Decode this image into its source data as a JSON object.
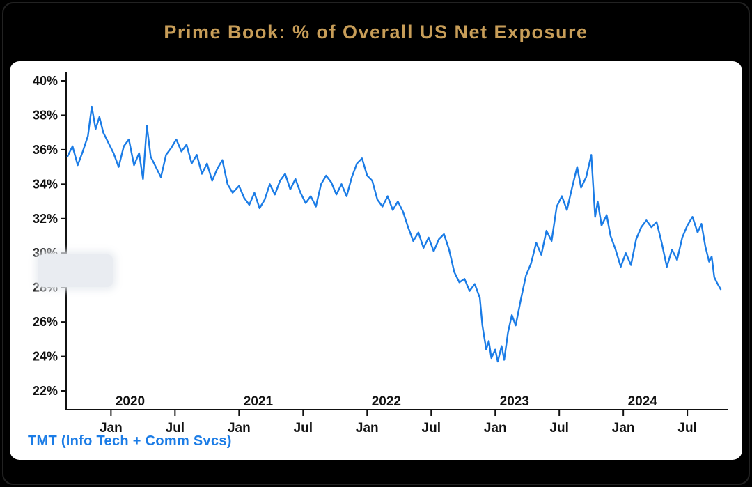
{
  "chart_data": {
    "type": "line",
    "title": "Prime Book: % of Overall US Net Exposure",
    "legend": "TMT (Info Tech + Comm Svcs)",
    "legend_position": "bottom-left",
    "title_color": "#c79d58",
    "line_color": "#1b7ce6",
    "axis_color": "#111111",
    "panel_background": "#ffffff",
    "page_background": "#000000",
    "grid": false,
    "xlabel": "",
    "ylabel": "",
    "ylim": [
      22,
      40
    ],
    "xlim": [
      2019.65,
      2024.82
    ],
    "y_ticks": [
      {
        "v": 22,
        "label": "22%"
      },
      {
        "v": 24,
        "label": "24%"
      },
      {
        "v": 26,
        "label": "26%"
      },
      {
        "v": 28,
        "label": "28%"
      },
      {
        "v": 30,
        "label": "30%"
      },
      {
        "v": 32,
        "label": "32%"
      },
      {
        "v": 34,
        "label": "34%"
      },
      {
        "v": 36,
        "label": "36%"
      },
      {
        "v": 38,
        "label": "38%"
      },
      {
        "v": 40,
        "label": "40%"
      }
    ],
    "x_ticks": [
      {
        "t": 2020.0,
        "label": "Jan"
      },
      {
        "t": 2020.5,
        "label": "Jul"
      },
      {
        "t": 2021.0,
        "label": "Jan"
      },
      {
        "t": 2021.5,
        "label": "Jul"
      },
      {
        "t": 2022.0,
        "label": "Jan"
      },
      {
        "t": 2022.5,
        "label": "Jul"
      },
      {
        "t": 2023.0,
        "label": "Jan"
      },
      {
        "t": 2023.5,
        "label": "Jul"
      },
      {
        "t": 2024.0,
        "label": "Jan"
      },
      {
        "t": 2024.5,
        "label": "Jul"
      }
    ],
    "year_labels": [
      {
        "t": 2020.15,
        "label": "2020"
      },
      {
        "t": 2021.15,
        "label": "2021"
      },
      {
        "t": 2022.15,
        "label": "2022"
      },
      {
        "t": 2023.15,
        "label": "2023"
      },
      {
        "t": 2024.15,
        "label": "2024"
      }
    ],
    "series": [
      {
        "name": "TMT (Info Tech + Comm Svcs)",
        "points": [
          [
            2019.66,
            35.6
          ],
          [
            2019.7,
            36.2
          ],
          [
            2019.74,
            35.1
          ],
          [
            2019.78,
            35.9
          ],
          [
            2019.82,
            36.8
          ],
          [
            2019.85,
            38.5
          ],
          [
            2019.88,
            37.2
          ],
          [
            2019.91,
            37.9
          ],
          [
            2019.94,
            37.0
          ],
          [
            2019.98,
            36.4
          ],
          [
            2020.02,
            35.8
          ],
          [
            2020.06,
            35.0
          ],
          [
            2020.1,
            36.2
          ],
          [
            2020.14,
            36.6
          ],
          [
            2020.18,
            35.1
          ],
          [
            2020.22,
            35.8
          ],
          [
            2020.25,
            34.3
          ],
          [
            2020.28,
            37.4
          ],
          [
            2020.31,
            35.6
          ],
          [
            2020.35,
            35.0
          ],
          [
            2020.39,
            34.4
          ],
          [
            2020.43,
            35.7
          ],
          [
            2020.47,
            36.1
          ],
          [
            2020.51,
            36.6
          ],
          [
            2020.55,
            35.9
          ],
          [
            2020.59,
            36.3
          ],
          [
            2020.63,
            35.2
          ],
          [
            2020.67,
            35.7
          ],
          [
            2020.71,
            34.6
          ],
          [
            2020.75,
            35.2
          ],
          [
            2020.79,
            34.2
          ],
          [
            2020.83,
            34.9
          ],
          [
            2020.87,
            35.4
          ],
          [
            2020.91,
            34.0
          ],
          [
            2020.95,
            33.5
          ],
          [
            2021.0,
            33.9
          ],
          [
            2021.04,
            33.2
          ],
          [
            2021.08,
            32.8
          ],
          [
            2021.12,
            33.5
          ],
          [
            2021.16,
            32.6
          ],
          [
            2021.2,
            33.1
          ],
          [
            2021.24,
            34.0
          ],
          [
            2021.28,
            33.4
          ],
          [
            2021.32,
            34.2
          ],
          [
            2021.36,
            34.6
          ],
          [
            2021.4,
            33.7
          ],
          [
            2021.44,
            34.3
          ],
          [
            2021.48,
            33.5
          ],
          [
            2021.52,
            32.9
          ],
          [
            2021.56,
            33.3
          ],
          [
            2021.6,
            32.7
          ],
          [
            2021.64,
            34.0
          ],
          [
            2021.68,
            34.5
          ],
          [
            2021.72,
            34.1
          ],
          [
            2021.76,
            33.4
          ],
          [
            2021.8,
            34.0
          ],
          [
            2021.84,
            33.3
          ],
          [
            2021.88,
            34.4
          ],
          [
            2021.92,
            35.2
          ],
          [
            2021.96,
            35.5
          ],
          [
            2022.0,
            34.5
          ],
          [
            2022.04,
            34.2
          ],
          [
            2022.08,
            33.1
          ],
          [
            2022.12,
            32.7
          ],
          [
            2022.16,
            33.3
          ],
          [
            2022.2,
            32.5
          ],
          [
            2022.24,
            33.0
          ],
          [
            2022.28,
            32.4
          ],
          [
            2022.32,
            31.5
          ],
          [
            2022.36,
            30.7
          ],
          [
            2022.4,
            31.2
          ],
          [
            2022.44,
            30.3
          ],
          [
            2022.48,
            30.9
          ],
          [
            2022.52,
            30.1
          ],
          [
            2022.56,
            30.8
          ],
          [
            2022.6,
            31.1
          ],
          [
            2022.64,
            30.2
          ],
          [
            2022.68,
            28.9
          ],
          [
            2022.72,
            28.3
          ],
          [
            2022.76,
            28.5
          ],
          [
            2022.8,
            27.8
          ],
          [
            2022.84,
            28.2
          ],
          [
            2022.88,
            27.4
          ],
          [
            2022.9,
            25.8
          ],
          [
            2022.93,
            24.4
          ],
          [
            2022.95,
            24.9
          ],
          [
            2022.97,
            23.9
          ],
          [
            2023.0,
            24.4
          ],
          [
            2023.02,
            23.7
          ],
          [
            2023.05,
            24.6
          ],
          [
            2023.07,
            23.8
          ],
          [
            2023.1,
            25.4
          ],
          [
            2023.13,
            26.4
          ],
          [
            2023.16,
            25.8
          ],
          [
            2023.2,
            27.3
          ],
          [
            2023.24,
            28.7
          ],
          [
            2023.28,
            29.4
          ],
          [
            2023.32,
            30.6
          ],
          [
            2023.36,
            29.9
          ],
          [
            2023.4,
            31.3
          ],
          [
            2023.44,
            30.7
          ],
          [
            2023.48,
            32.7
          ],
          [
            2023.52,
            33.3
          ],
          [
            2023.56,
            32.5
          ],
          [
            2023.6,
            33.8
          ],
          [
            2023.64,
            35.0
          ],
          [
            2023.67,
            33.8
          ],
          [
            2023.71,
            34.4
          ],
          [
            2023.75,
            35.7
          ],
          [
            2023.78,
            32.1
          ],
          [
            2023.8,
            33.0
          ],
          [
            2023.83,
            31.6
          ],
          [
            2023.87,
            32.2
          ],
          [
            2023.9,
            31.0
          ],
          [
            2023.94,
            30.2
          ],
          [
            2023.98,
            29.2
          ],
          [
            2024.02,
            30.0
          ],
          [
            2024.06,
            29.3
          ],
          [
            2024.1,
            30.8
          ],
          [
            2024.14,
            31.5
          ],
          [
            2024.18,
            31.9
          ],
          [
            2024.22,
            31.5
          ],
          [
            2024.26,
            31.8
          ],
          [
            2024.3,
            30.6
          ],
          [
            2024.34,
            29.2
          ],
          [
            2024.38,
            30.2
          ],
          [
            2024.42,
            29.6
          ],
          [
            2024.46,
            30.9
          ],
          [
            2024.5,
            31.6
          ],
          [
            2024.54,
            32.1
          ],
          [
            2024.58,
            31.2
          ],
          [
            2024.61,
            31.7
          ],
          [
            2024.64,
            30.4
          ],
          [
            2024.67,
            29.5
          ],
          [
            2024.69,
            29.8
          ],
          [
            2024.71,
            28.6
          ],
          [
            2024.73,
            28.3
          ],
          [
            2024.76,
            27.9
          ]
        ]
      }
    ],
    "annotations": [
      {
        "type": "redaction-box",
        "note": "light rounded box obscuring the y-axis labels between 28% and 30%"
      }
    ]
  }
}
